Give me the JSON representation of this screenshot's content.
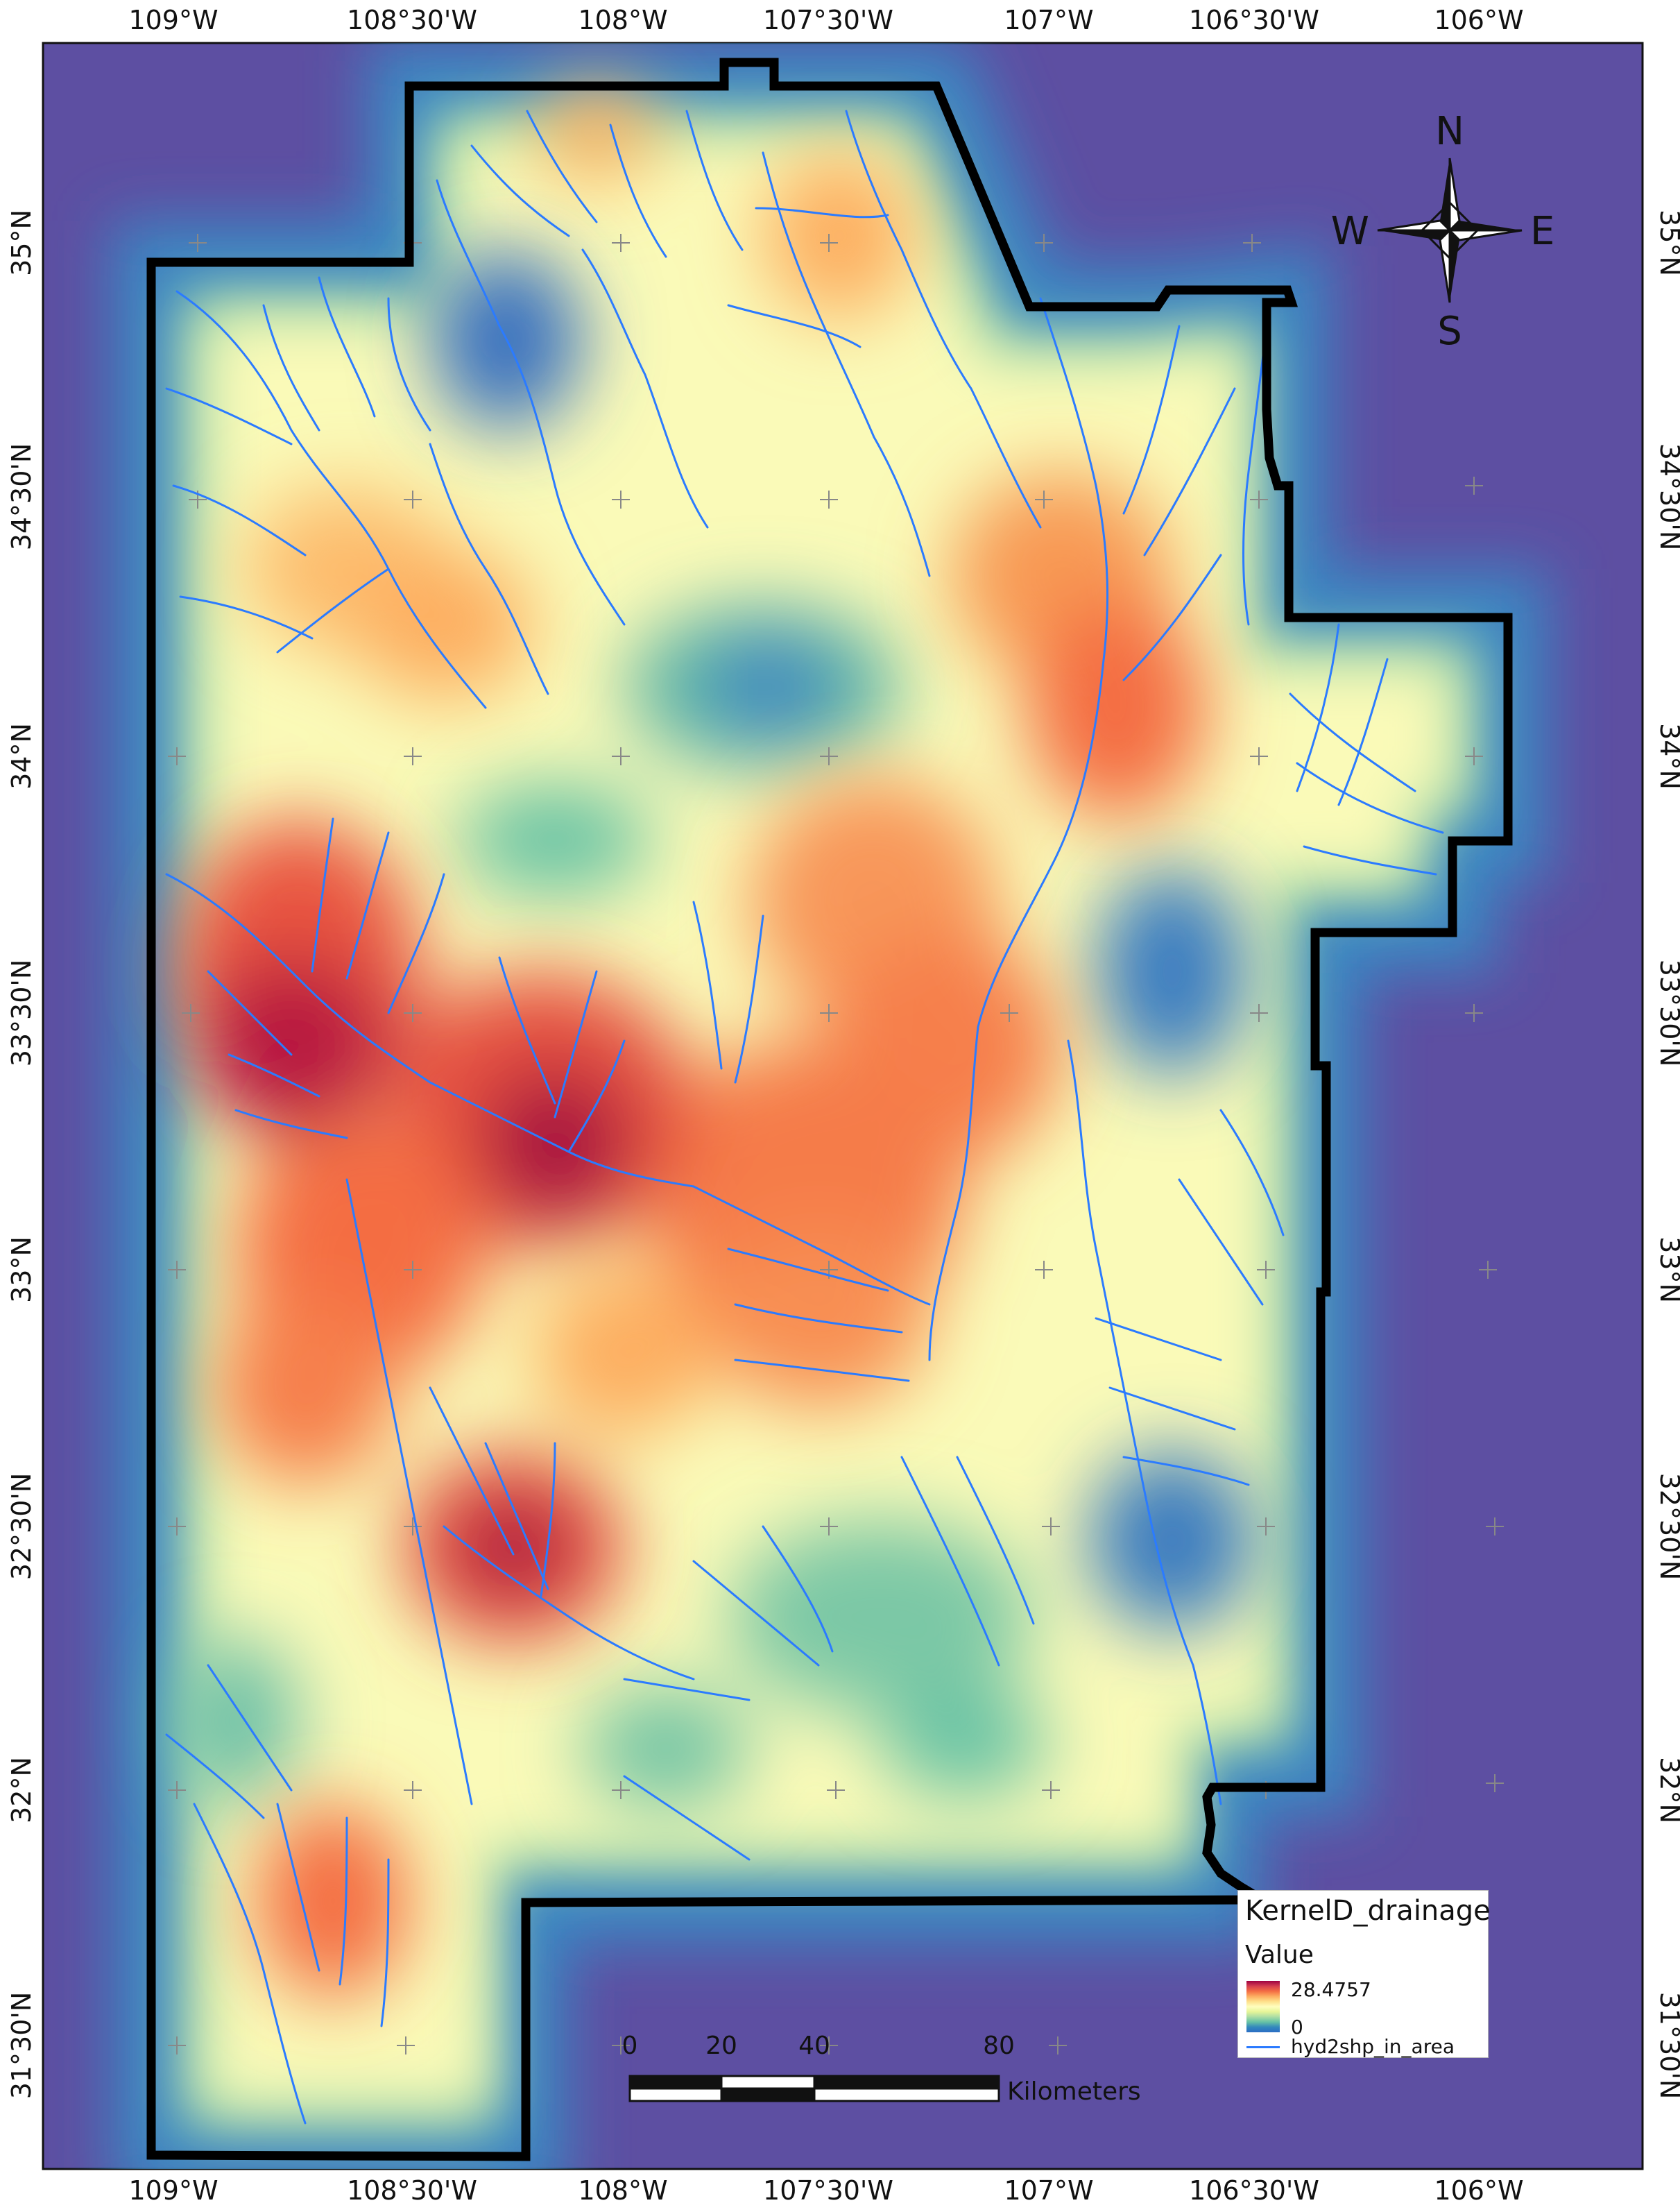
{
  "map": {
    "top_lon_labels": [
      "109°W",
      "108°30'W",
      "108°W",
      "107°30'W",
      "107°W",
      "106°30'W",
      "106°W"
    ],
    "bottom_lon_labels": [
      "109°W",
      "108°30'W",
      "108°W",
      "107°30'W",
      "107°W",
      "106°30'W",
      "106°W"
    ],
    "left_lat_labels": [
      "35°N",
      "34°30'N",
      "34°N",
      "33°30'N",
      "33°N",
      "32°30'N",
      "32°N",
      "31°30'N"
    ],
    "right_lat_labels": [
      "35°N",
      "34°30'N",
      "34°N",
      "33°30'N",
      "33°N",
      "32°30'N",
      "32°N",
      "31°30'N"
    ],
    "colors": {
      "background": "#5d4fa2",
      "boundary": "#000000",
      "streams": "#2b7bff",
      "ramp_high": "#9e0142",
      "ramp_low": "#2b6cc4"
    }
  },
  "compass": {
    "n": "N",
    "s": "S",
    "e": "E",
    "w": "W"
  },
  "legend": {
    "title": "KernelD_drainage",
    "value_label": "Value",
    "max": "28.4757",
    "min": "0",
    "line_label": "hyd2shp_in_area"
  },
  "scalebar": {
    "labels": [
      "0",
      "20",
      "40",
      "80"
    ],
    "units": "Kilometers"
  }
}
